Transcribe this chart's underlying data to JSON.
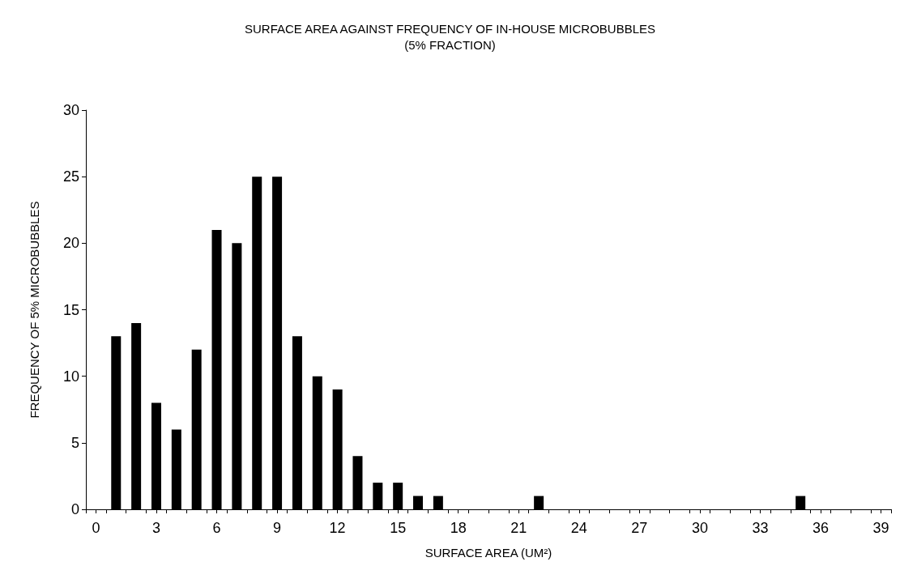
{
  "chart_data": {
    "type": "bar",
    "title": "SURFACE AREA AGAINST FREQUENCY OF IN-HOUSE MICROBUBBLES\n(5% FRACTION)",
    "xlabel": "SURFACE AREA (UM²)",
    "ylabel": "FREQUENCY OF 5% MICROBUBBLES",
    "x": [
      1,
      2,
      3,
      4,
      5,
      6,
      7,
      8,
      9,
      10,
      11,
      12,
      13,
      14,
      15,
      16,
      17,
      22,
      35
    ],
    "values": [
      13,
      14,
      8,
      6,
      12,
      21,
      20,
      25,
      25,
      13,
      10,
      9,
      4,
      2,
      2,
      1,
      1,
      1,
      1
    ],
    "color": "#000000",
    "xlim": [
      -0.5,
      39.5
    ],
    "xticks": [
      0,
      3,
      6,
      9,
      12,
      15,
      18,
      21,
      24,
      27,
      30,
      33,
      36,
      39,
      {
        "value": -0.5,
        "label": null
      },
      {
        "value": 0.5,
        "label": null
      },
      {
        "value": 1.5,
        "label": null
      },
      {
        "value": 2.5,
        "label": null
      },
      {
        "value": 3.5,
        "label": null
      },
      {
        "value": 4.5,
        "label": null
      },
      {
        "value": 5.5,
        "label": null
      },
      {
        "value": 6.5,
        "label": null
      },
      {
        "value": 7.5,
        "label": null
      },
      {
        "value": 8.5,
        "label": null
      },
      {
        "value": 9.5,
        "label": null
      },
      {
        "value": 10.5,
        "label": null
      },
      {
        "value": 11.5,
        "label": null
      },
      {
        "value": 12.5,
        "label": null
      },
      {
        "value": 13.5,
        "label": null
      },
      {
        "value": 14.5,
        "label": null
      },
      {
        "value": 15.5,
        "label": null
      },
      {
        "value": 16.5,
        "label": null
      },
      {
        "value": 17.5,
        "label": null
      },
      {
        "value": 18.5,
        "label": null
      },
      {
        "value": 19.5,
        "label": null
      },
      {
        "value": 20.5,
        "label": null
      },
      {
        "value": 21.5,
        "label": null
      },
      {
        "value": 22.5,
        "label": null
      },
      {
        "value": 23.5,
        "label": null
      },
      {
        "value": 24.5,
        "label": null
      },
      {
        "value": 25.5,
        "label": null
      },
      {
        "value": 26.5,
        "label": null
      },
      {
        "value": 27.5,
        "label": null
      },
      {
        "value": 28.5,
        "label": null
      },
      {
        "value": 29.5,
        "label": null
      },
      {
        "value": 30.5,
        "label": null
      },
      {
        "value": 31.5,
        "label": null
      },
      {
        "value": 32.5,
        "label": null
      },
      {
        "value": 33.5,
        "label": null
      },
      {
        "value": 34.5,
        "label": null
      },
      {
        "value": 35.5,
        "label": null
      },
      {
        "value": 36.5,
        "label": null
      },
      {
        "value": 37.5,
        "label": null
      },
      {
        "value": 38.5,
        "label": null
      },
      {
        "value": 39.5,
        "label": null
      }
    ],
    "ylim": [
      0,
      30
    ],
    "yticks": [
      0,
      5,
      10,
      15,
      20,
      25,
      30
    ],
    "grid": false
  }
}
